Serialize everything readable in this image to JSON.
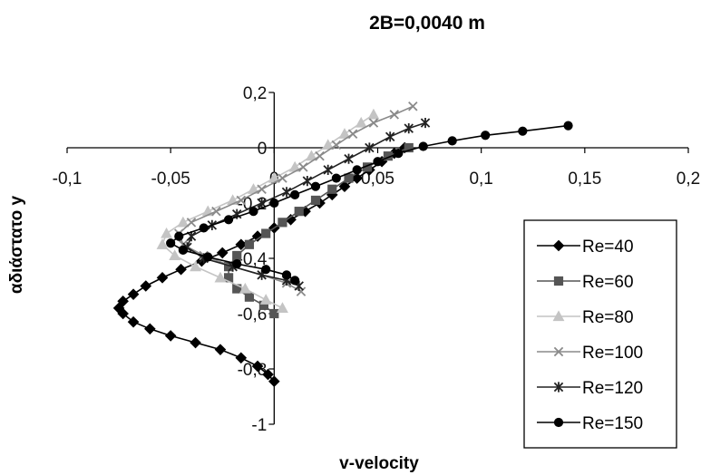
{
  "chart_data": {
    "type": "line",
    "title": "2B=0,0040 m",
    "xlabel": "v-velocity",
    "ylabel": "αδιάστατο y",
    "xlim": [
      -0.1,
      0.2
    ],
    "ylim": [
      -1,
      0.2
    ],
    "x_ticks": [
      "-0,1",
      "-0,05",
      "0",
      "0,05",
      "0,1",
      "0,15",
      "0,2"
    ],
    "y_ticks": [
      "0,2",
      "0",
      "-0,2",
      "-0,4",
      "-0,6",
      "-0,8",
      "-1"
    ],
    "grid": false,
    "legend_position": "right",
    "series": [
      {
        "name": "Re=40",
        "color": "#000000",
        "marker": "diamond",
        "points": [
          [
            0.063,
            0.0
          ],
          [
            0.058,
            -0.02
          ],
          [
            0.052,
            -0.05
          ],
          [
            0.046,
            -0.08
          ],
          [
            0.04,
            -0.11
          ],
          [
            0.034,
            -0.14
          ],
          [
            0.028,
            -0.17
          ],
          [
            0.022,
            -0.2
          ],
          [
            0.015,
            -0.23
          ],
          [
            0.008,
            -0.26
          ],
          [
            0.0,
            -0.29
          ],
          [
            -0.008,
            -0.32
          ],
          [
            -0.016,
            -0.35
          ],
          [
            -0.025,
            -0.38
          ],
          [
            -0.035,
            -0.41
          ],
          [
            -0.045,
            -0.44
          ],
          [
            -0.054,
            -0.47
          ],
          [
            -0.062,
            -0.5
          ],
          [
            -0.068,
            -0.53
          ],
          [
            -0.073,
            -0.555
          ],
          [
            -0.075,
            -0.58
          ],
          [
            -0.073,
            -0.6
          ],
          [
            -0.068,
            -0.63
          ],
          [
            -0.06,
            -0.655
          ],
          [
            -0.05,
            -0.68
          ],
          [
            -0.038,
            -0.705
          ],
          [
            -0.026,
            -0.73
          ],
          [
            -0.016,
            -0.76
          ],
          [
            -0.008,
            -0.79
          ],
          [
            -0.003,
            -0.82
          ],
          [
            0.0,
            -0.845
          ]
        ]
      },
      {
        "name": "Re=60",
        "color": "#555555",
        "marker": "square",
        "points": [
          [
            0.065,
            0.0
          ],
          [
            0.055,
            -0.03
          ],
          [
            0.045,
            -0.07
          ],
          [
            0.036,
            -0.11
          ],
          [
            0.028,
            -0.15
          ],
          [
            0.02,
            -0.19
          ],
          [
            0.012,
            -0.23
          ],
          [
            0.004,
            -0.27
          ],
          [
            -0.004,
            -0.31
          ],
          [
            -0.012,
            -0.35
          ],
          [
            -0.018,
            -0.39
          ],
          [
            -0.022,
            -0.43
          ],
          [
            -0.022,
            -0.47
          ],
          [
            -0.018,
            -0.51
          ],
          [
            -0.012,
            -0.54
          ],
          [
            -0.005,
            -0.57
          ],
          [
            0.0,
            -0.6
          ]
        ]
      },
      {
        "name": "Re=80",
        "color": "#c4c4c4",
        "marker": "triangle",
        "points": [
          [
            0.048,
            0.12
          ],
          [
            0.042,
            0.09
          ],
          [
            0.034,
            0.05
          ],
          [
            0.026,
            0.01
          ],
          [
            0.018,
            -0.03
          ],
          [
            0.01,
            -0.07
          ],
          [
            0.0,
            -0.11
          ],
          [
            -0.01,
            -0.15
          ],
          [
            -0.02,
            -0.19
          ],
          [
            -0.032,
            -0.23
          ],
          [
            -0.044,
            -0.27
          ],
          [
            -0.052,
            -0.31
          ],
          [
            -0.054,
            -0.35
          ],
          [
            -0.048,
            -0.39
          ],
          [
            -0.038,
            -0.43
          ],
          [
            -0.026,
            -0.47
          ],
          [
            -0.014,
            -0.51
          ],
          [
            -0.004,
            -0.55
          ],
          [
            0.004,
            -0.58
          ]
        ]
      },
      {
        "name": "Re=100",
        "color": "#8a8a8a",
        "marker": "x",
        "points": [
          [
            0.067,
            0.15
          ],
          [
            0.058,
            0.12
          ],
          [
            0.048,
            0.09
          ],
          [
            0.038,
            0.05
          ],
          [
            0.03,
            0.01
          ],
          [
            0.022,
            -0.03
          ],
          [
            0.014,
            -0.07
          ],
          [
            0.004,
            -0.11
          ],
          [
            -0.006,
            -0.15
          ],
          [
            -0.016,
            -0.19
          ],
          [
            -0.028,
            -0.23
          ],
          [
            -0.04,
            -0.27
          ],
          [
            -0.046,
            -0.31
          ],
          [
            -0.044,
            -0.35
          ],
          [
            -0.034,
            -0.39
          ],
          [
            -0.02,
            -0.43
          ],
          [
            -0.006,
            -0.46
          ],
          [
            0.006,
            -0.49
          ],
          [
            0.013,
            -0.52
          ]
        ]
      },
      {
        "name": "Re=120",
        "color": "#222222",
        "marker": "star",
        "points": [
          [
            0.073,
            0.09
          ],
          [
            0.065,
            0.07
          ],
          [
            0.056,
            0.04
          ],
          [
            0.046,
            0.0
          ],
          [
            0.036,
            -0.04
          ],
          [
            0.026,
            -0.08
          ],
          [
            0.016,
            -0.12
          ],
          [
            0.006,
            -0.16
          ],
          [
            -0.006,
            -0.2
          ],
          [
            -0.018,
            -0.24
          ],
          [
            -0.03,
            -0.28
          ],
          [
            -0.04,
            -0.32
          ],
          [
            -0.042,
            -0.36
          ],
          [
            -0.034,
            -0.4
          ],
          [
            -0.02,
            -0.43
          ],
          [
            -0.006,
            -0.46
          ],
          [
            0.006,
            -0.48
          ],
          [
            0.012,
            -0.5
          ]
        ]
      },
      {
        "name": "Re=150",
        "color": "#000000",
        "marker": "circle",
        "points": [
          [
            0.142,
            0.08
          ],
          [
            0.12,
            0.06
          ],
          [
            0.102,
            0.045
          ],
          [
            0.086,
            0.025
          ],
          [
            0.072,
            0.005
          ],
          [
            0.06,
            -0.02
          ],
          [
            0.05,
            -0.05
          ],
          [
            0.04,
            -0.08
          ],
          [
            0.03,
            -0.11
          ],
          [
            0.02,
            -0.14
          ],
          [
            0.01,
            -0.17
          ],
          [
            0.0,
            -0.2
          ],
          [
            -0.01,
            -0.23
          ],
          [
            -0.022,
            -0.26
          ],
          [
            -0.034,
            -0.29
          ],
          [
            -0.046,
            -0.32
          ],
          [
            -0.05,
            -0.345
          ],
          [
            -0.044,
            -0.37
          ],
          [
            -0.032,
            -0.395
          ],
          [
            -0.018,
            -0.42
          ],
          [
            -0.004,
            -0.44
          ],
          [
            0.006,
            -0.46
          ],
          [
            0.01,
            -0.48
          ]
        ]
      }
    ]
  }
}
